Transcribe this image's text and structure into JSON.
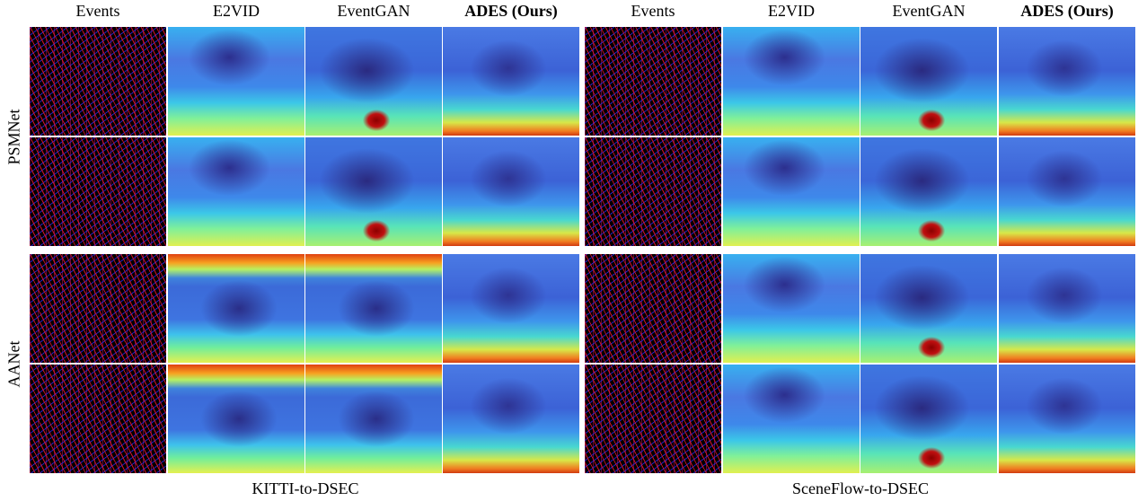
{
  "column_headers": [
    "Events",
    "E2VID",
    "EventGAN",
    "ADES (Ours)",
    "Events",
    "E2VID",
    "EventGAN",
    "ADES (Ours)"
  ],
  "row_labels": [
    "PSMNet",
    "AANet"
  ],
  "captions": [
    "KITTI-to-DSEC",
    "SceneFlow-to-DSEC"
  ]
}
